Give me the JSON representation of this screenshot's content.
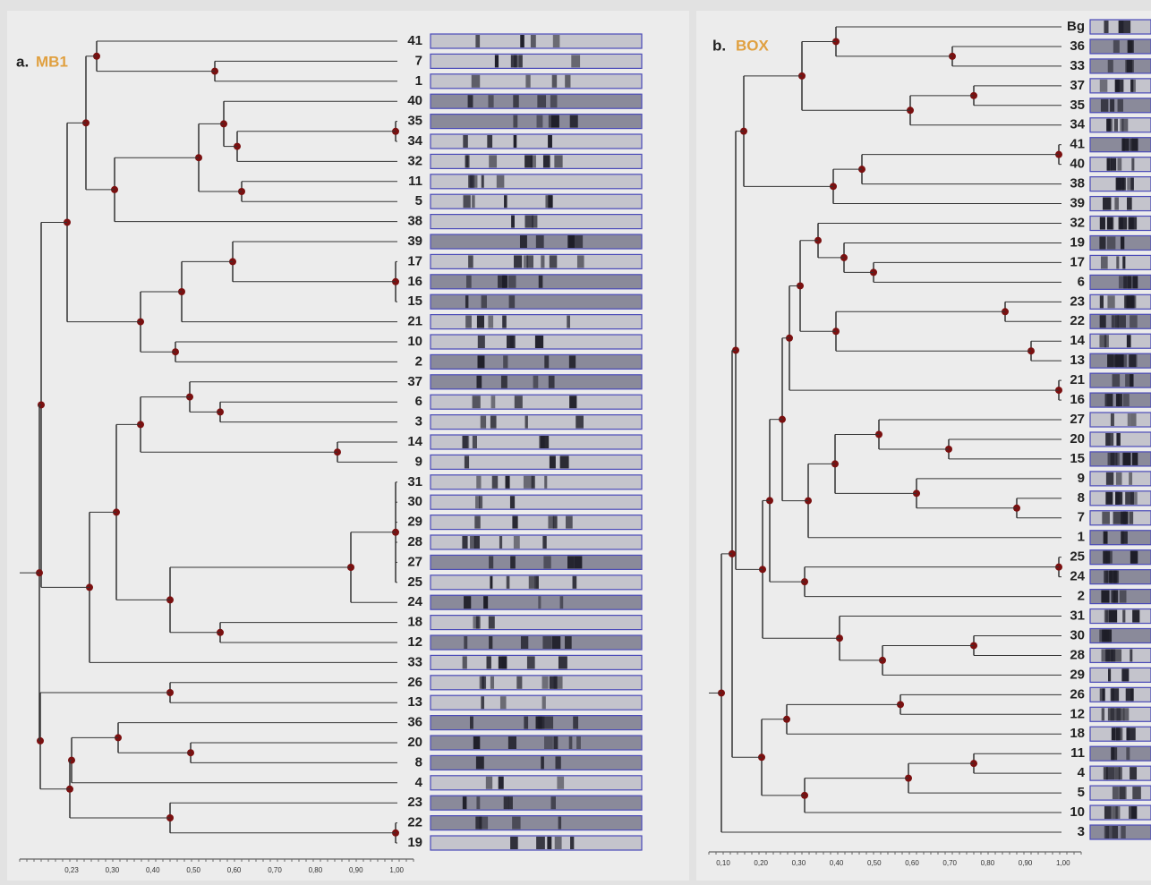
{
  "panel_a": {
    "label": "a.",
    "name": "MB1",
    "leaves": [
      "41",
      "7",
      "1",
      "40",
      "35",
      "34",
      "32",
      "11",
      "5",
      "38",
      "39",
      "17",
      "16",
      "15",
      "21",
      "10",
      "2",
      "37",
      "6",
      "3",
      "14",
      "9",
      "31",
      "30",
      "29",
      "28",
      "27",
      "25",
      "24",
      "18",
      "12",
      "33",
      "26",
      "13",
      "36",
      "20",
      "8",
      "4",
      "23",
      "22",
      "19"
    ],
    "axis_ticks": [
      "0,23",
      "0,30",
      "0,40",
      "0,50",
      "0,60",
      "0,70",
      "0,80",
      "0,90",
      "1,00"
    ]
  },
  "panel_b": {
    "label": "b.",
    "name": "BOX",
    "leaves": [
      "Bg",
      "36",
      "33",
      "37",
      "35",
      "34",
      "41",
      "40",
      "38",
      "39",
      "32",
      "19",
      "17",
      "6",
      "23",
      "22",
      "14",
      "13",
      "21",
      "16",
      "27",
      "20",
      "15",
      "9",
      "8",
      "7",
      "1",
      "25",
      "24",
      "2",
      "31",
      "30",
      "28",
      "29",
      "26",
      "12",
      "18",
      "11",
      "4",
      "5",
      "10",
      "3"
    ],
    "axis_ticks": [
      "0,10",
      "0,20",
      "0,30",
      "0,40",
      "0,50",
      "0,60",
      "0,70",
      "0,80",
      "0,90",
      "1,00"
    ]
  }
}
